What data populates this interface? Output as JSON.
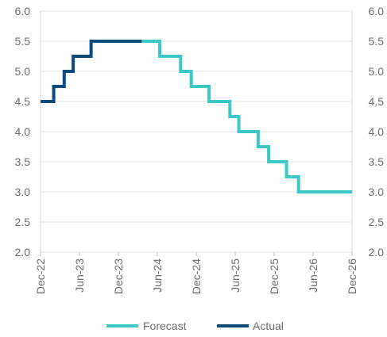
{
  "chart_data": {
    "type": "line",
    "title": "",
    "xlabel": "",
    "ylabel": "",
    "ylim": [
      2.0,
      6.0
    ],
    "y_ticks": [
      "2.0",
      "2.5",
      "3.0",
      "3.5",
      "4.0",
      "4.5",
      "5.0",
      "5.5",
      "6.0"
    ],
    "x_ticks": [
      "Dec-22",
      "Jun-23",
      "Dec-23",
      "Jun-24",
      "Dec-24",
      "Jun-25",
      "Dec-25",
      "Jun-26",
      "Dec-26"
    ],
    "grid": true,
    "legend": "bottom",
    "line_shape": "step",
    "series": [
      {
        "name": "Actual",
        "color": "#0b4a7d",
        "points": [
          [
            "2022-12-01",
            4.5
          ],
          [
            "2023-02-01",
            4.75
          ],
          [
            "2023-03-22",
            5.0
          ],
          [
            "2023-05-03",
            5.25
          ],
          [
            "2023-07-26",
            5.5
          ],
          [
            "2024-03-20",
            5.5
          ]
        ]
      },
      {
        "name": "Forecast",
        "color": "#3cc8c8",
        "points": [
          [
            "2024-03-20",
            5.5
          ],
          [
            "2024-06-12",
            5.25
          ],
          [
            "2024-09-18",
            5.0
          ],
          [
            "2024-11-07",
            4.75
          ],
          [
            "2025-01-29",
            4.5
          ],
          [
            "2025-05-07",
            4.25
          ],
          [
            "2025-06-18",
            4.0
          ],
          [
            "2025-09-17",
            3.75
          ],
          [
            "2025-11-05",
            3.5
          ],
          [
            "2026-01-28",
            3.25
          ],
          [
            "2026-03-25",
            3.0
          ],
          [
            "2026-12-01",
            3.0
          ]
        ]
      }
    ]
  }
}
